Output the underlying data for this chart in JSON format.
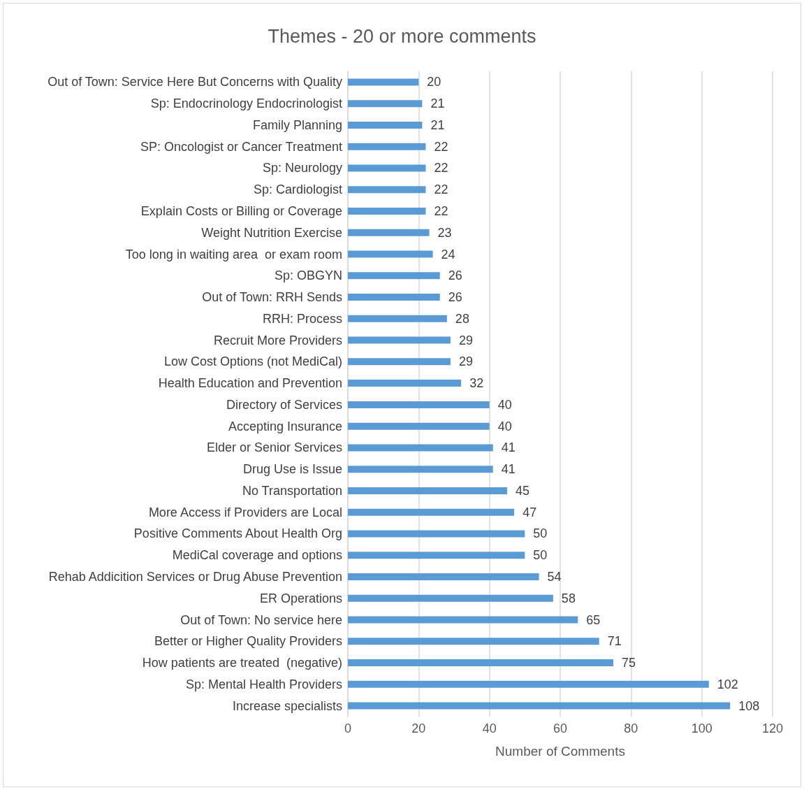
{
  "chart_data": {
    "type": "bar",
    "orientation": "horizontal",
    "title": "Themes - 20 or more comments",
    "xlabel": "Number of Comments",
    "categories": [
      "Out of Town: Service Here But Concerns with Quality",
      "Sp: Endocrinology Endocrinologist",
      "Family Planning",
      "SP: Oncologist or Cancer Treatment",
      "Sp: Neurology",
      "Sp: Cardiologist",
      "Explain Costs or Billing or Coverage",
      "Weight Nutrition Exercise",
      "Too long in waiting area  or exam room",
      "Sp: OBGYN",
      "Out of Town: RRH Sends",
      "RRH: Process",
      "Recruit More Providers",
      "Low Cost Options (not MediCal)",
      "Health Education and Prevention",
      "Directory of Services",
      "Accepting Insurance",
      "Elder or Senior Services",
      "Drug Use is Issue",
      "No Transportation",
      "More Access if Providers are Local",
      "Positive Comments About Health Org",
      "MediCal coverage and options",
      "Rehab Addicition Services or Drug Abuse Prevention",
      "ER Operations",
      "Out of Town: No service here",
      "Better or Higher Quality Providers",
      "How patients are treated  (negative)",
      "Sp: Mental Health Providers",
      "Increase specialists"
    ],
    "values": [
      20,
      21,
      21,
      22,
      22,
      22,
      22,
      23,
      24,
      26,
      26,
      28,
      29,
      29,
      32,
      40,
      40,
      41,
      41,
      45,
      47,
      50,
      50,
      54,
      58,
      65,
      71,
      75,
      102,
      108
    ],
    "color": "#5b9bd5",
    "xlim": [
      0,
      120
    ],
    "xticks": [
      0,
      20,
      40,
      60,
      80,
      100,
      120
    ],
    "grid": "x",
    "data_labels": true
  }
}
